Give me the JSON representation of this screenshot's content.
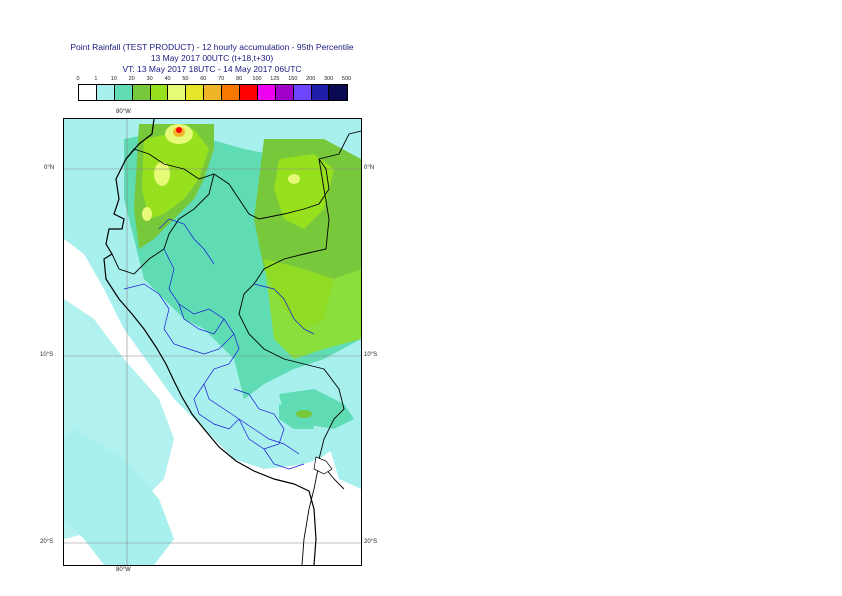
{
  "titles": {
    "line1": "Point Rainfall (TEST PRODUCT) - 12 hourly accumulation - 95th Percentile",
    "line2": "13 May 2017 00UTC (t+18,t+30)",
    "line3": "VT: 13 May 2017 18UTC - 14 May 2017 06UTC"
  },
  "legend": {
    "labels": [
      "0",
      "1",
      "10",
      "20",
      "30",
      "40",
      "50",
      "60",
      "70",
      "80",
      "100",
      "125",
      "150",
      "200",
      "300",
      "500"
    ],
    "colors": [
      "#ffffff",
      "#a8f0ee",
      "#5fdcb4",
      "#78c83c",
      "#96e01e",
      "#e6fa78",
      "#e6e628",
      "#f0b428",
      "#fa7800",
      "#ff0000",
      "#f000f0",
      "#a000c8",
      "#6e46ff",
      "#1e1eaa",
      "#0a0a50"
    ]
  },
  "map": {
    "lon_label_top": "80°W",
    "lon_label_bottom": "80°W",
    "lat_labels_left": [
      "0°N",
      "10°S",
      "20°S"
    ],
    "lat_labels_right": [
      "0°N",
      "10°S",
      "20°S"
    ]
  }
}
